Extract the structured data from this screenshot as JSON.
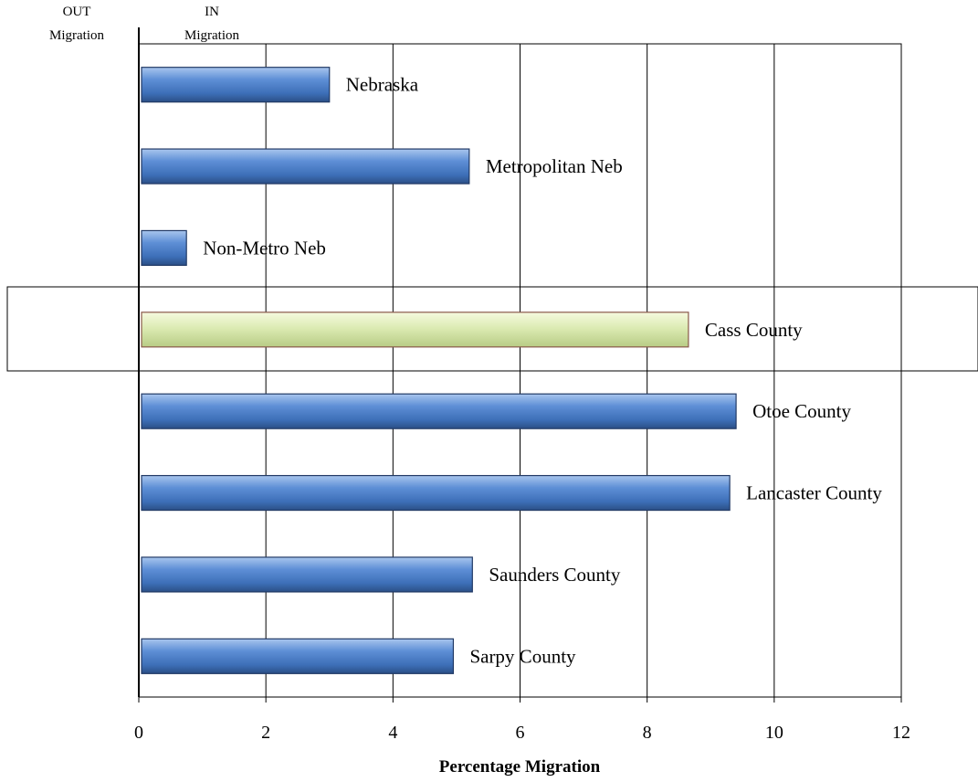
{
  "chart_data": {
    "type": "bar",
    "orientation": "horizontal",
    "categories": [
      "Nebraska",
      "Metropolitan Neb",
      "Non-Metro Neb",
      "Cass County",
      "Otoe County",
      "Lancaster County",
      "Saunders County",
      "Sarpy County"
    ],
    "values": [
      3.0,
      5.2,
      0.75,
      8.65,
      9.4,
      9.3,
      5.25,
      4.95
    ],
    "highlight": "Cass County",
    "xlabel": "Percentage Migration",
    "xlim": [
      0,
      12
    ],
    "xticks": [
      0,
      2,
      4,
      6,
      8,
      10,
      12
    ],
    "grid": "vertical",
    "side_labels": {
      "out": [
        "OUT",
        "Migration"
      ],
      "in": [
        "IN",
        "Migration"
      ]
    },
    "colors": {
      "bar": "#4f81bd",
      "highlight": "#d6e4a8",
      "grid": "#000000"
    }
  }
}
